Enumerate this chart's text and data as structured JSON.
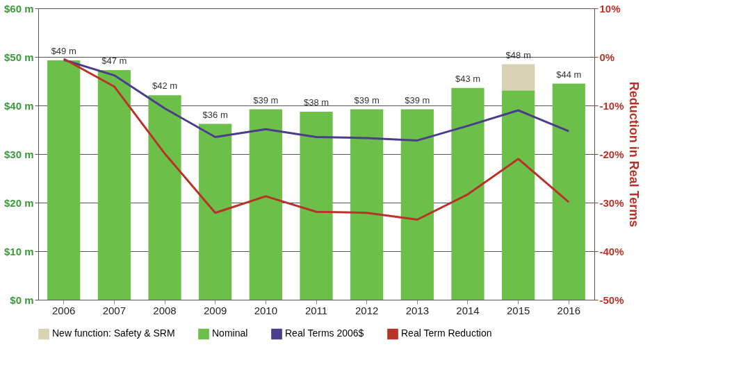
{
  "chart_data": {
    "type": "bar",
    "stacked": true,
    "categories": [
      "2006",
      "2007",
      "2008",
      "2009",
      "2010",
      "2011",
      "2012",
      "2013",
      "2014",
      "2015",
      "2016"
    ],
    "series": [
      {
        "name": "Nominal",
        "color": "#6cc04a",
        "values": [
          49.3,
          47.3,
          42.1,
          36.2,
          39.2,
          38.7,
          39.2,
          39.2,
          43.6,
          43.1,
          44.5
        ]
      },
      {
        "name": "New function: Safety & SRM",
        "color": "#d9d1b3",
        "values": [
          null,
          null,
          null,
          null,
          null,
          null,
          null,
          null,
          null,
          5.4,
          null
        ]
      },
      {
        "name": "Real Terms 2006$",
        "type": "line",
        "color": "#4b3c8c",
        "values": [
          49.4,
          46.2,
          39.4,
          33.5,
          35.1,
          33.5,
          33.3,
          32.8,
          35.8,
          39.0,
          34.7
        ]
      },
      {
        "name": "Real Term Reduction",
        "type": "line",
        "axis": "y2",
        "color": "#b83228",
        "values": [
          -0.4,
          -6.1,
          -19.9,
          -32.1,
          -28.7,
          -31.9,
          -32.1,
          -33.5,
          -28.3,
          -21.0,
          -29.9
        ]
      }
    ],
    "totals": [
      "$49 m",
      "$47 m",
      "$42 m",
      "$36 m",
      "$39 m",
      "$38 m",
      "$39 m",
      "$39 m",
      "$43 m",
      "$48 m",
      "$44 m"
    ],
    "y2label": "Reduction in Real Terms",
    "ylim": [
      0,
      60
    ],
    "yticks": [
      {
        "value": 0,
        "label": "$0 m"
      },
      {
        "value": 10,
        "label": "$10 m"
      },
      {
        "value": 20,
        "label": "$20 m"
      },
      {
        "value": 30,
        "label": "$30 m"
      },
      {
        "value": 40,
        "label": "$40 m"
      },
      {
        "value": 50,
        "label": "$50 m"
      },
      {
        "value": 60,
        "label": "$60 m"
      }
    ],
    "y2lim": [
      -50,
      10
    ],
    "y2ticks": [
      {
        "value": -50,
        "label": "-50%"
      },
      {
        "value": -40,
        "label": "-40%"
      },
      {
        "value": -30,
        "label": "-30%"
      },
      {
        "value": -20,
        "label": "-20%"
      },
      {
        "value": -10,
        "label": "-10%"
      },
      {
        "value": 0,
        "label": "0%"
      },
      {
        "value": 10,
        "label": "10%"
      }
    ],
    "grid": "y",
    "legend": "bottom",
    "marker": "none",
    "line_style": "solid"
  }
}
